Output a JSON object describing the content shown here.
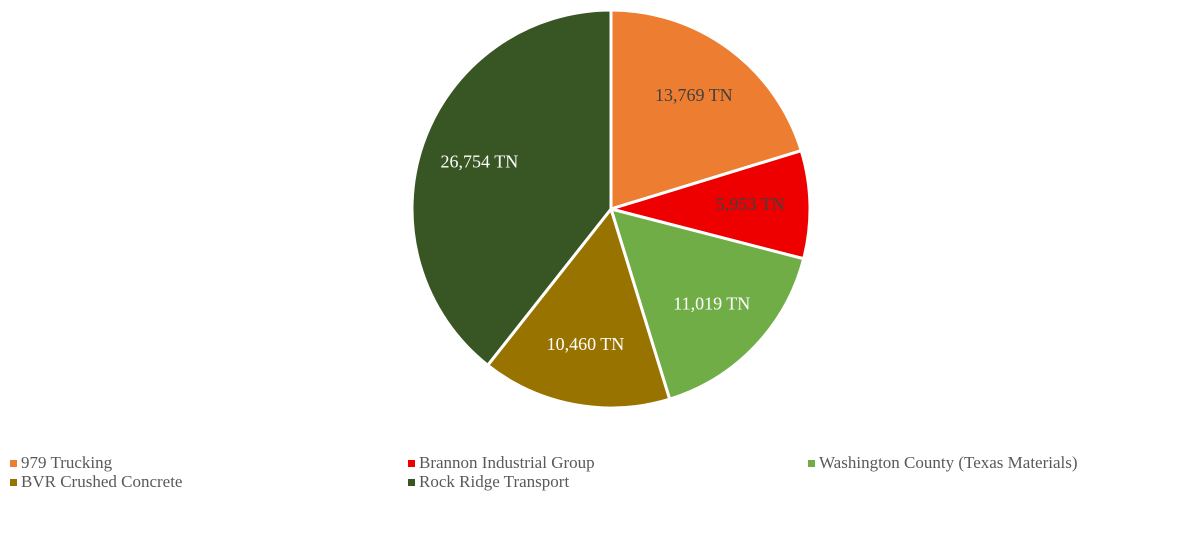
{
  "chart_data": {
    "type": "pie",
    "categories": [
      "979 Trucking",
      "Brannon Industrial Group",
      "Washington County (Texas Materials)",
      "BVR Crushed Concrete",
      "Rock Ridge Transport"
    ],
    "values": [
      13769,
      5953,
      11019,
      10460,
      26754
    ],
    "value_labels": [
      "13,769 TN",
      "5,953 TN",
      "11,019 TN",
      "10,460 TN",
      "26,754 TN"
    ],
    "colors": [
      "#ed7d31",
      "#ee0000",
      "#70ad47",
      "#997300",
      "#375623"
    ],
    "label_colors": [
      "#404040",
      "#404040",
      "#ffffff",
      "#ffffff",
      "#ffffff"
    ],
    "legend": "bottom"
  }
}
